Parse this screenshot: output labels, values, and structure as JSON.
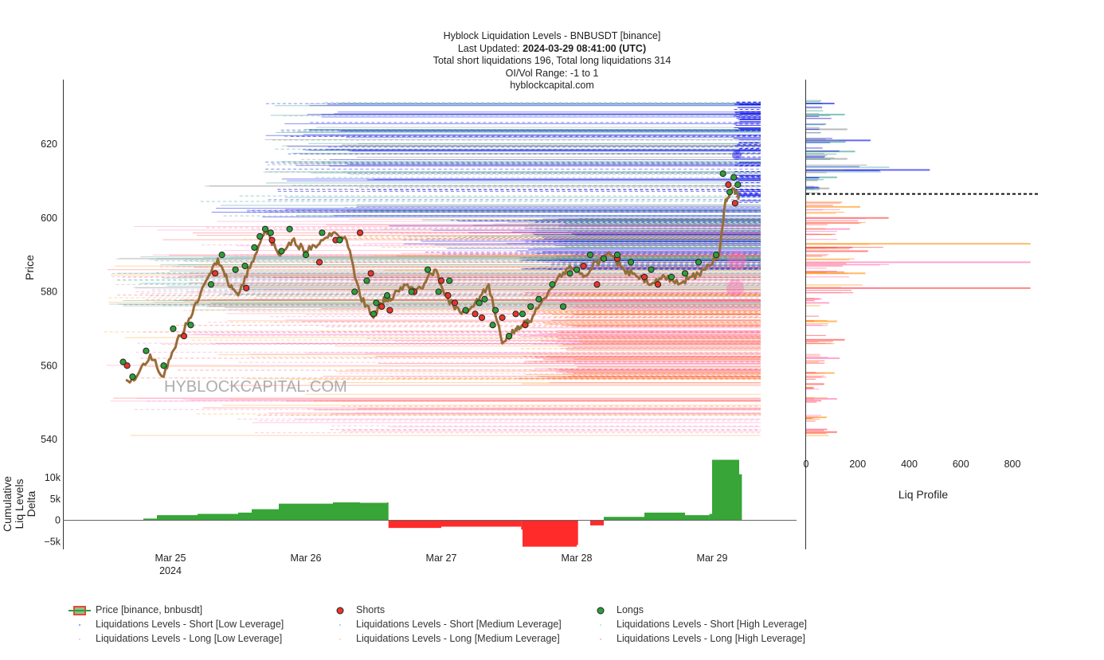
{
  "header": {
    "line1": "Hyblock Liquidation Levels - BNBUSDT [binance]",
    "updated_prefix": "Last Updated: ",
    "updated_value": "2024-03-29 08:41:00 (UTC)",
    "line3": "Total short liquidations 196, Total long liquidations 314",
    "line4": "OI/Vol Range: -1 to 1",
    "line5": "hyblockcapital.com"
  },
  "watermark": "HYBLOCKCAPITAL.COM",
  "colors": {
    "price_up": "#3a9a3a",
    "price_down": "#e8473a",
    "short_low": "#0000ee",
    "short_medium": "#2e9c8f",
    "short_high": "#8c8c8c",
    "long_low": "#ff69b4",
    "long_medium": "#ff8c00",
    "long_high": "#ff3333",
    "delta_pos": "#2ca02c",
    "delta_neg": "#ff2020"
  },
  "chart_data": [
    {
      "type": "line",
      "panel": "price",
      "ylabel": "Price",
      "ylim": [
        536,
        633
      ],
      "yticks": [
        540,
        560,
        580,
        600,
        620
      ],
      "xlim": [
        0.5,
        5.7
      ],
      "x_ticks": [
        1,
        2,
        3,
        4,
        5
      ],
      "x_tick_labels": [
        "Mar 25",
        "Mar 26",
        "Mar 27",
        "Mar 28",
        "Mar 29"
      ],
      "x_tick_sub": "2024",
      "x_unit": "days since Mar 24 00:00 UTC",
      "series": [
        {
          "name": "Price [binance, bnbusdt]",
          "x": [
            0.67,
            0.75,
            0.85,
            0.95,
            1.05,
            1.15,
            1.25,
            1.35,
            1.42,
            1.5,
            1.6,
            1.7,
            1.8,
            1.9,
            2.0,
            2.1,
            2.2,
            2.3,
            2.4,
            2.5,
            2.55,
            2.6,
            2.65,
            2.75,
            2.85,
            2.95,
            3.05,
            3.15,
            3.25,
            3.35,
            3.45,
            3.55,
            3.6,
            3.65,
            3.75,
            3.85,
            3.95,
            4.05,
            4.15,
            4.25,
            4.35,
            4.45,
            4.55,
            4.65,
            4.75,
            4.85,
            4.95,
            5.05,
            5.1,
            5.15,
            5.2
          ],
          "y": [
            556,
            557,
            563,
            557,
            567,
            573,
            582,
            589,
            583,
            579,
            588,
            597,
            590,
            594,
            591,
            593,
            596,
            594,
            579,
            573,
            577,
            578,
            579,
            582,
            581,
            586,
            578,
            574,
            577,
            582,
            566,
            570,
            571,
            572,
            578,
            583,
            587,
            584,
            588,
            590,
            586,
            584,
            582,
            584,
            582,
            584,
            586,
            590,
            605,
            608,
            606
          ]
        }
      ],
      "shorts_markers": {
        "name": "Shorts",
        "x": [
          0.68,
          1.1,
          1.33,
          1.56,
          1.75,
          2.1,
          2.22,
          2.4,
          2.48,
          2.56,
          2.62,
          2.8,
          3.0,
          3.05,
          3.1,
          3.25,
          3.3,
          3.45,
          3.55,
          3.62,
          4.05,
          4.15,
          4.3,
          4.5,
          4.6,
          5.12,
          5.17
        ],
        "y": [
          560,
          568,
          585,
          581,
          594,
          588,
          594,
          596,
          585,
          576,
          575,
          580,
          583,
          579,
          577,
          574,
          573,
          573,
          574,
          571,
          587,
          582,
          589,
          584,
          582,
          609,
          604
        ]
      },
      "longs_markers": {
        "name": "Longs",
        "x": [
          0.65,
          0.72,
          0.82,
          0.95,
          1.02,
          1.15,
          1.3,
          1.38,
          1.48,
          1.55,
          1.62,
          1.66,
          1.7,
          1.74,
          1.82,
          1.88,
          2.0,
          2.12,
          2.25,
          2.36,
          2.45,
          2.5,
          2.52,
          2.6,
          2.78,
          2.9,
          2.98,
          3.06,
          3.18,
          3.28,
          3.32,
          3.38,
          3.4,
          3.5,
          3.6,
          3.66,
          3.72,
          3.82,
          3.9,
          3.95,
          4.0,
          4.1,
          4.2,
          4.3,
          4.4,
          4.55,
          4.7,
          4.8,
          4.9,
          5.03,
          5.08,
          5.13,
          5.16,
          5.19
        ],
        "y": [
          561,
          557,
          564,
          560,
          570,
          571,
          582,
          590,
          586,
          587,
          592,
          595,
          597,
          596,
          591,
          597,
          590,
          596,
          594,
          580,
          583,
          574,
          577,
          579,
          580,
          586,
          580,
          583,
          575,
          577,
          578,
          571,
          575,
          568,
          574,
          576,
          578,
          582,
          576,
          585,
          586,
          590,
          589,
          590,
          588,
          586,
          584,
          585,
          588,
          590,
          612,
          607,
          611,
          609
        ]
      }
    },
    {
      "type": "area",
      "panel": "delta",
      "ylabel": "Cumulative Liq Levels Delta",
      "ylim": [
        -7000,
        15000
      ],
      "yticks": [
        -5000,
        0,
        5000,
        10000
      ],
      "ytick_labels": [
        "−5k",
        "0",
        "5k",
        "10k"
      ],
      "xlim": [
        0.5,
        5.7
      ],
      "series": [
        {
          "name": "Cumulative delta",
          "x": [
            0.66,
            0.8,
            0.9,
            1.2,
            1.5,
            1.6,
            1.75,
            1.8,
            2.2,
            2.4,
            2.6,
            2.61,
            3.0,
            3.4,
            3.59,
            3.6,
            4.0,
            4.01,
            4.1,
            4.2,
            4.5,
            4.8,
            4.98,
            5.0,
            5.2,
            5.22
          ],
          "y": [
            0,
            400,
            1200,
            1500,
            1800,
            2600,
            2600,
            3900,
            4200,
            4100,
            4200,
            -1800,
            -1500,
            -1500,
            -2200,
            -6200,
            -5800,
            0,
            -1200,
            800,
            1800,
            1200,
            1500,
            14200,
            10800,
            10600
          ]
        }
      ]
    },
    {
      "type": "bar",
      "panel": "liq_profile",
      "orientation": "horizontal",
      "xlabel": "Liq Profile",
      "xlim": [
        0,
        900
      ],
      "xticks": [
        0,
        200,
        400,
        600,
        800
      ],
      "ylim": [
        536,
        633
      ],
      "current_price": 606.5,
      "series": [
        {
          "name": "Short",
          "prices": [
            631,
            628,
            624,
            621,
            618,
            616,
            613,
            611,
            608
          ],
          "values": [
            110,
            150,
            160,
            250,
            190,
            160,
            480,
            120,
            90
          ]
        },
        {
          "name": "Long",
          "prices": [
            603,
            600,
            597,
            593,
            591,
            588,
            585,
            581,
            577,
            572,
            567,
            562,
            558,
            555,
            551,
            546,
            542
          ],
          "values": [
            210,
            320,
            170,
            870,
            240,
            870,
            230,
            870,
            90,
            120,
            150,
            130,
            110,
            70,
            120,
            80,
            120
          ]
        }
      ]
    }
  ],
  "legend": {
    "price": "Price [binance, bnbusdt]",
    "shorts": "Shorts",
    "longs": "Longs",
    "short_low": "Liquidations Levels - Short [Low Leverage]",
    "short_medium": "Liquidations Levels - Short [Medium Leverage]",
    "short_high": "Liquidations Levels - Short [High Leverage]",
    "long_low": "Liquidations Levels - Long [Low Leverage]",
    "long_medium": "Liquidations Levels - Long [Medium Leverage]",
    "long_high": "Liquidations Levels - Long [High Leverage]"
  }
}
